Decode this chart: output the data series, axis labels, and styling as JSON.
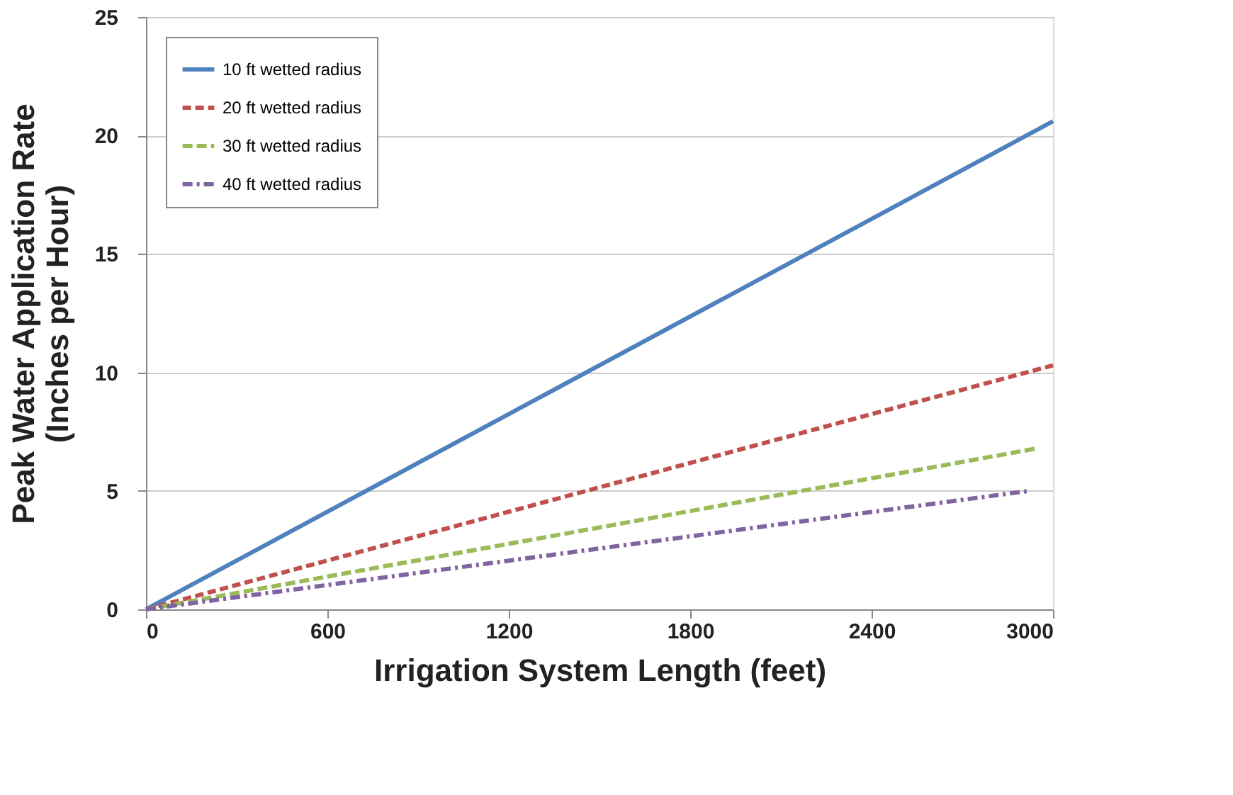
{
  "chart_data": {
    "type": "line",
    "xlabel": "Irrigation System Length (feet)",
    "ylabel": "Peak Water Application Rate\n(Inches per Hour)",
    "xlim": [
      0,
      3000
    ],
    "xticks": [
      0,
      600,
      1200,
      1800,
      2400,
      3000
    ],
    "ylim": [
      0,
      25
    ],
    "yticks": [
      0,
      5,
      10,
      15,
      20,
      25
    ],
    "grid": "y",
    "legend": "top left",
    "marker": "none",
    "series": [
      {
        "name": "10 ft wetted radius",
        "color": "#4f81bd",
        "line_style": "solid",
        "x": [
          0,
          3000
        ],
        "values": [
          0,
          20.6
        ]
      },
      {
        "name": "20 ft wetted radius",
        "color": "#c0504d",
        "line_style": "dashed",
        "x": [
          0,
          3000
        ],
        "values": [
          0,
          10.3
        ]
      },
      {
        "name": "30 ft wetted radius",
        "color": "#9bbb59",
        "line_style": "dashed",
        "x": [
          0,
          2950
        ],
        "values": [
          0,
          6.8
        ]
      },
      {
        "name": "40 ft wetted radius",
        "color": "#8064a2",
        "line_style": "dashed",
        "x": [
          0,
          2920
        ],
        "values": [
          0,
          5.0
        ]
      }
    ]
  }
}
